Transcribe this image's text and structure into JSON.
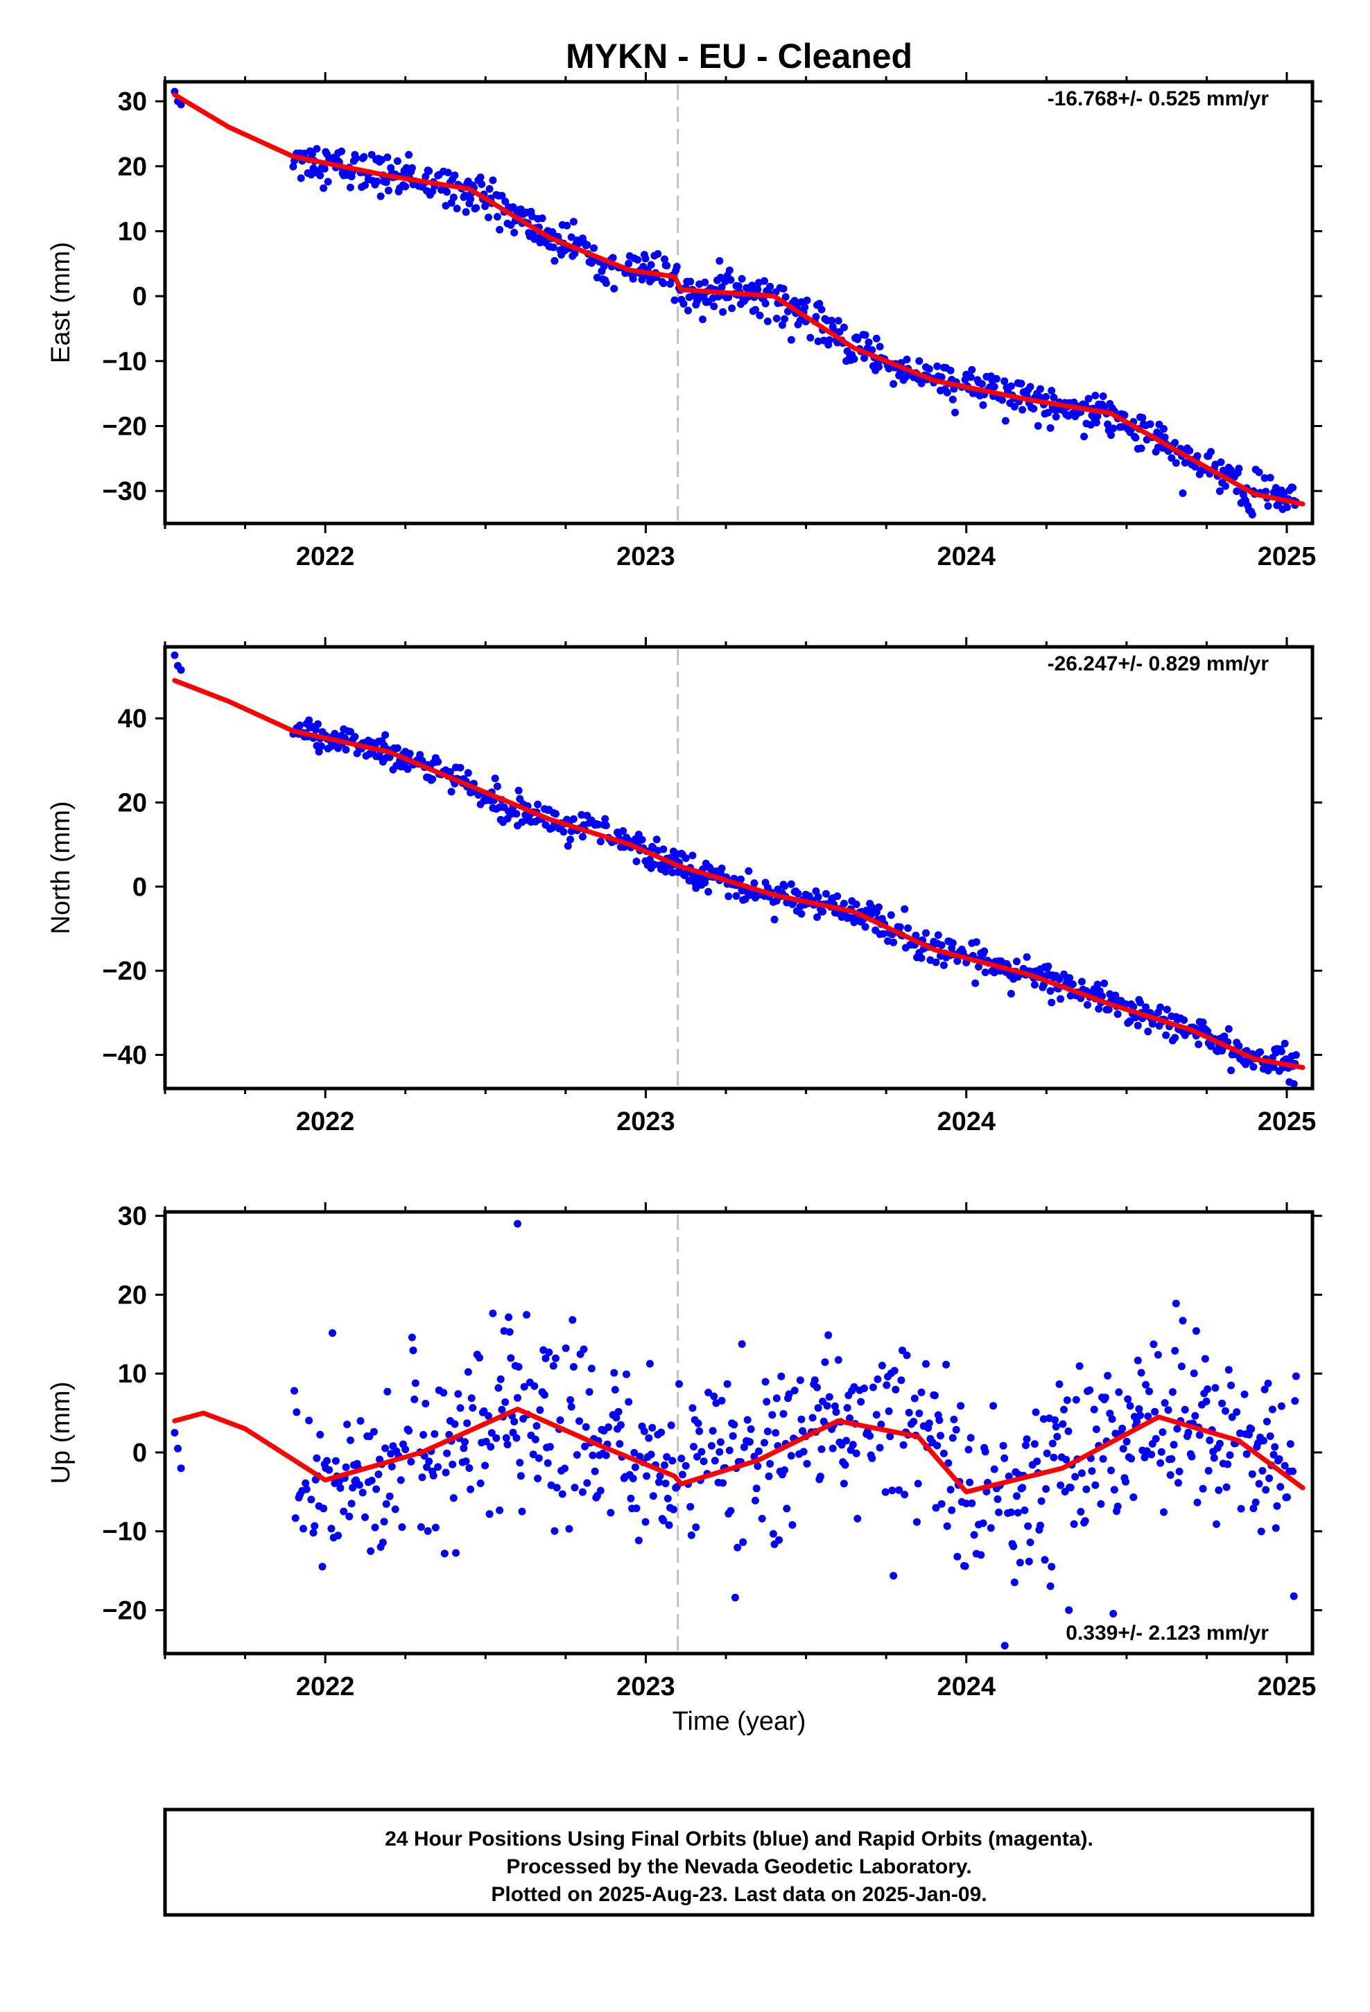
{
  "title": "MYKN  - EU - Cleaned",
  "xlabel": "Time (year)",
  "footer": [
    "24 Hour Positions Using Final Orbits (blue) and Rapid Orbits (magenta).",
    "Processed by the Nevada Geodetic Laboratory.",
    "Plotted on 2025-Aug-23. Last data on 2025-Jan-09."
  ],
  "colors": {
    "data": "#0000ff",
    "model": "#ff0000",
    "step_line": "#c0c0c0"
  },
  "chart_data": [
    {
      "type": "scatter",
      "ylabel": "East (mm)",
      "annotation": "-16.768+/- 0.525 mm/yr",
      "xlim": [
        2021.5,
        2025.08
      ],
      "ylim": [
        -35,
        33
      ],
      "xticks": [
        2022,
        2023,
        2024,
        2025
      ],
      "yticks": [
        -30,
        -20,
        -10,
        0,
        10,
        20,
        30
      ],
      "step_epoch": 2023.1,
      "seasonal_amplitude": 3.4,
      "noise": 1.5,
      "model": {
        "x": [
          2021.53,
          2021.7,
          2021.9,
          2022.2,
          2022.45,
          2022.7,
          2022.95,
          2023.09,
          2023.11,
          2023.4,
          2023.65,
          2023.9,
          2024.2,
          2024.45,
          2024.7,
          2024.9,
          2025.05
        ],
        "y": [
          31,
          26,
          21.5,
          18.5,
          16.5,
          9,
          4,
          3,
          1,
          0,
          -8,
          -13,
          -16,
          -18,
          -25,
          -30.5,
          -32
        ]
      },
      "series": [
        {
          "name": "Final Orbits",
          "x": [
            2021.53,
            2021.54,
            2021.55
          ],
          "y": [
            31.5,
            30.0,
            29.5
          ]
        }
      ]
    },
    {
      "type": "scatter",
      "ylabel": "North (mm)",
      "annotation": "-26.247+/- 0.829 mm/yr",
      "xlim": [
        2021.5,
        2025.08
      ],
      "ylim": [
        -48,
        57
      ],
      "xticks": [
        2022,
        2023,
        2024,
        2025
      ],
      "yticks": [
        -40,
        -20,
        0,
        20,
        40
      ],
      "step_epoch": 2023.1,
      "seasonal_amplitude": 2.5,
      "noise": 1.8,
      "model": {
        "x": [
          2021.53,
          2021.7,
          2021.9,
          2022.2,
          2022.45,
          2022.7,
          2022.95,
          2023.1,
          2023.4,
          2023.65,
          2023.9,
          2024.2,
          2024.45,
          2024.7,
          2024.9,
          2025.05
        ],
        "y": [
          49,
          44,
          37,
          32,
          24,
          16,
          10,
          5,
          -2,
          -6,
          -15,
          -21,
          -28,
          -34,
          -41,
          -43
        ]
      },
      "series": [
        {
          "name": "Final Orbits",
          "x": [
            2021.53,
            2021.54,
            2021.55
          ],
          "y": [
            55,
            52.5,
            51.5
          ]
        }
      ]
    },
    {
      "type": "scatter",
      "ylabel": "Up (mm)",
      "annotation": "0.339+/- 2.123 mm/yr",
      "xlim": [
        2021.5,
        2025.08
      ],
      "ylim": [
        -25.5,
        30.5
      ],
      "xticks": [
        2022,
        2023,
        2024,
        2025
      ],
      "yticks": [
        -20,
        -10,
        0,
        10,
        20,
        30
      ],
      "step_epoch": 2023.1,
      "seasonal_amplitude": 4.5,
      "noise": 5.5,
      "model": {
        "x": [
          2021.53,
          2021.62,
          2021.75,
          2022.0,
          2022.3,
          2022.6,
          2022.85,
          2023.09,
          2023.11,
          2023.35,
          2023.6,
          2023.85,
          2024.0,
          2024.3,
          2024.6,
          2024.85,
          2025.05
        ],
        "y": [
          4,
          5,
          3,
          -3.5,
          0,
          5.5,
          1,
          -3,
          -4,
          -1,
          4,
          2,
          -5,
          -2,
          4.5,
          1.5,
          -4.5
        ]
      },
      "series": [
        {
          "name": "Final Orbits",
          "x": [
            2021.53,
            2021.54,
            2021.55,
            2022.6,
            2024.12,
            2024.32
          ],
          "y": [
            2.5,
            0.5,
            -2,
            29,
            -24.5,
            -20
          ]
        }
      ]
    }
  ]
}
